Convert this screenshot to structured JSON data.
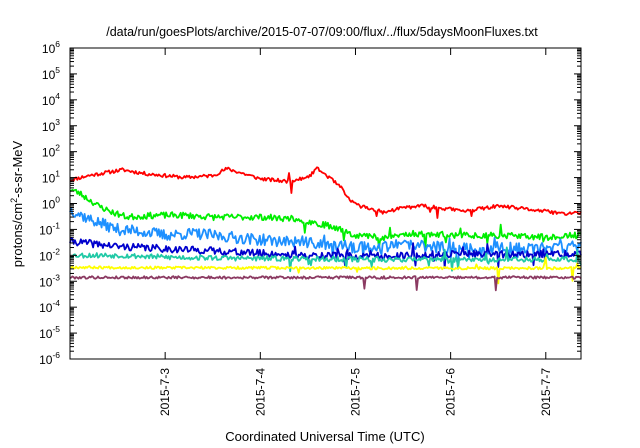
{
  "chart_data": {
    "type": "line",
    "title": "/data/run/goesPlots/archive/2015-07-07/09:00/flux/../flux/5daysMoonFluxes.txt",
    "xlabel": "Coordinated Universal Time (UTC)",
    "ylabel": "protons/cm2-s-sr-MeV",
    "ylabel_base": "protons/cm",
    "ylabel_sup": "2",
    "ylabel_rest": "-s-sr-MeV",
    "x_ticks": [
      "2015-7-3",
      "2015-7-4",
      "2015-7-5",
      "2015-7-6",
      "2015-7-7"
    ],
    "x_range_days": [
      2.0,
      7.37
    ],
    "y_scale": "log",
    "y_ticks_exponents": [
      -6,
      -5,
      -4,
      -3,
      -2,
      -1,
      0,
      1,
      2,
      3,
      4,
      5,
      6
    ],
    "y_tick_base": "10",
    "ylim": [
      1e-06,
      1000000.0
    ],
    "grid": false,
    "legend": "none",
    "series": [
      {
        "color": "#ff0000",
        "seed": 11,
        "noise": 0.07,
        "spike": 0.03,
        "knots": [
          [
            2.0,
            8
          ],
          [
            2.2,
            12
          ],
          [
            2.55,
            20
          ],
          [
            2.8,
            14
          ],
          [
            3.0,
            12
          ],
          [
            3.2,
            10
          ],
          [
            3.5,
            12
          ],
          [
            3.65,
            22
          ],
          [
            3.8,
            15
          ],
          [
            4.0,
            9
          ],
          [
            4.3,
            7
          ],
          [
            4.5,
            10
          ],
          [
            4.6,
            22
          ],
          [
            4.7,
            12
          ],
          [
            4.85,
            4
          ],
          [
            4.9,
            2
          ],
          [
            5.0,
            0.9
          ],
          [
            5.3,
            0.45
          ],
          [
            5.5,
            0.7
          ],
          [
            5.7,
            0.8
          ],
          [
            6.0,
            0.6
          ],
          [
            6.15,
            0.5
          ],
          [
            6.5,
            0.8
          ],
          [
            6.9,
            0.55
          ],
          [
            7.2,
            0.4
          ],
          [
            7.37,
            0.45
          ]
        ]
      },
      {
        "color": "#00ee00",
        "seed": 23,
        "noise": 0.12,
        "spike": 0.06,
        "knots": [
          [
            2.0,
            3.5
          ],
          [
            2.1,
            2.5
          ],
          [
            2.3,
            0.8
          ],
          [
            2.45,
            0.45
          ],
          [
            2.6,
            0.3
          ],
          [
            2.9,
            0.35
          ],
          [
            3.2,
            0.35
          ],
          [
            3.5,
            0.3
          ],
          [
            4.0,
            0.3
          ],
          [
            4.4,
            0.25
          ],
          [
            4.8,
            0.12
          ],
          [
            5.0,
            0.06
          ],
          [
            5.3,
            0.05
          ],
          [
            5.6,
            0.07
          ],
          [
            6.0,
            0.06
          ],
          [
            6.5,
            0.06
          ],
          [
            7.0,
            0.05
          ],
          [
            7.37,
            0.06
          ]
        ]
      },
      {
        "color": "#1e90ff",
        "seed": 37,
        "noise": 0.22,
        "spike": 0.12,
        "knots": [
          [
            2.0,
            0.6
          ],
          [
            2.2,
            0.25
          ],
          [
            2.5,
            0.1
          ],
          [
            2.8,
            0.08
          ],
          [
            3.0,
            0.06
          ],
          [
            3.3,
            0.07
          ],
          [
            3.7,
            0.05
          ],
          [
            4.0,
            0.04
          ],
          [
            4.5,
            0.03
          ],
          [
            4.8,
            0.025
          ],
          [
            5.0,
            0.02
          ],
          [
            5.5,
            0.025
          ],
          [
            6.0,
            0.02
          ],
          [
            6.5,
            0.02
          ],
          [
            7.0,
            0.018
          ],
          [
            7.37,
            0.02
          ]
        ]
      },
      {
        "color": "#0000cd",
        "seed": 41,
        "noise": 0.14,
        "spike": 0.1,
        "knots": [
          [
            2.0,
            0.035
          ],
          [
            2.5,
            0.022
          ],
          [
            3.0,
            0.018
          ],
          [
            3.5,
            0.015
          ],
          [
            4.0,
            0.012
          ],
          [
            4.5,
            0.01
          ],
          [
            5.0,
            0.009
          ],
          [
            5.5,
            0.01
          ],
          [
            6.0,
            0.011
          ],
          [
            6.5,
            0.011
          ],
          [
            7.0,
            0.011
          ],
          [
            7.37,
            0.011
          ]
        ]
      },
      {
        "color": "#20c9a6",
        "seed": 53,
        "noise": 0.1,
        "spike": 0.08,
        "knots": [
          [
            2.0,
            0.01
          ],
          [
            2.5,
            0.01
          ],
          [
            3.0,
            0.0085
          ],
          [
            3.5,
            0.008
          ],
          [
            4.0,
            0.0075
          ],
          [
            4.5,
            0.0075
          ],
          [
            5.0,
            0.007
          ],
          [
            5.5,
            0.007
          ],
          [
            6.0,
            0.007
          ],
          [
            6.5,
            0.007
          ],
          [
            7.0,
            0.007
          ],
          [
            7.37,
            0.007
          ]
        ]
      },
      {
        "color": "#ffff00",
        "seed": 67,
        "noise": 0.05,
        "spike": 0.04,
        "knots": [
          [
            2.0,
            0.0035
          ],
          [
            3.0,
            0.0033
          ],
          [
            4.0,
            0.0033
          ],
          [
            5.0,
            0.0032
          ],
          [
            6.0,
            0.0032
          ],
          [
            7.0,
            0.0032
          ],
          [
            7.37,
            0.0032
          ]
        ]
      },
      {
        "color": "#8b3a62",
        "seed": 79,
        "noise": 0.05,
        "spike": 0.03,
        "knots": [
          [
            2.0,
            0.0014
          ],
          [
            3.0,
            0.0014
          ],
          [
            4.0,
            0.0014
          ],
          [
            5.0,
            0.0014
          ],
          [
            6.0,
            0.0014
          ],
          [
            7.0,
            0.0014
          ],
          [
            7.37,
            0.0014
          ]
        ]
      }
    ]
  }
}
